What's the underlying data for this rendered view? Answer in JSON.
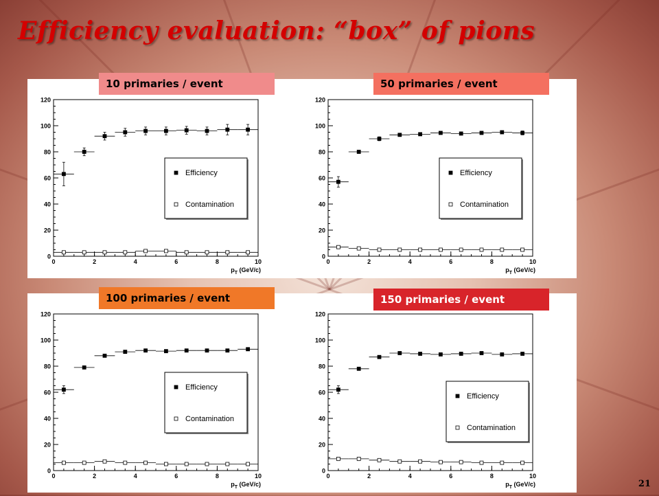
{
  "slide": {
    "title": "Efficiency evaluation: “box” of pions",
    "page_number": "21"
  },
  "colors": {
    "title": "#d40000",
    "label_10": "#f08b8b",
    "label_50": "#f47060",
    "label_100": "#f07828",
    "label_150": "#d8242a",
    "label_150_text": "#ffffff",
    "label_text": "#000000"
  },
  "panels": [
    {
      "label": "10 primaries  / event"
    },
    {
      "label": "50 primaries  / event"
    },
    {
      "label": "100 primaries / event"
    },
    {
      "label": "150 primaries / event"
    }
  ],
  "chart_data": [
    {
      "type": "scatter",
      "xlabel": "p_T (GeV/c)",
      "xlim": [
        0,
        10
      ],
      "ylim": [
        0,
        120
      ],
      "xticks": [
        0,
        2,
        4,
        6,
        8,
        10
      ],
      "yticks": [
        0,
        20,
        40,
        60,
        80,
        100,
        120
      ],
      "legend": [
        "Efficiency",
        "Contamination"
      ],
      "legend_position": "center-right",
      "x": [
        0.5,
        1.5,
        2.5,
        3.5,
        4.5,
        5.5,
        6.5,
        7.5,
        8.5,
        9.5
      ],
      "series": [
        {
          "name": "Efficiency",
          "marker": "filled-square",
          "values": [
            63,
            80,
            92,
            95,
            96,
            96,
            96.5,
            96,
            97,
            97
          ],
          "errors": [
            9,
            3,
            3,
            3,
            3,
            3,
            3,
            3,
            4,
            4
          ]
        },
        {
          "name": "Contamination",
          "marker": "open-square",
          "values": [
            3,
            3,
            3,
            3,
            4,
            4,
            3,
            3,
            3,
            3
          ]
        }
      ]
    },
    {
      "type": "scatter",
      "xlabel": "p_T (GeV/c)",
      "xlim": [
        0,
        10
      ],
      "ylim": [
        0,
        120
      ],
      "xticks": [
        0,
        2,
        4,
        6,
        8,
        10
      ],
      "yticks": [
        0,
        20,
        40,
        60,
        80,
        100,
        120
      ],
      "legend": [
        "Efficiency",
        "Contamination"
      ],
      "legend_position": "center-right",
      "x": [
        0.5,
        1.5,
        2.5,
        3.5,
        4.5,
        5.5,
        6.5,
        7.5,
        8.5,
        9.5
      ],
      "series": [
        {
          "name": "Efficiency",
          "marker": "filled-square",
          "values": [
            57,
            80,
            90,
            93,
            93.5,
            94.5,
            94,
            94.5,
            95,
            94.5
          ],
          "errors": [
            4,
            1,
            1.5,
            1,
            1,
            1,
            1,
            1,
            1,
            1.5
          ]
        },
        {
          "name": "Contamination",
          "marker": "open-square",
          "values": [
            7,
            6,
            5,
            5,
            5,
            5,
            5,
            5,
            5,
            5
          ]
        }
      ]
    },
    {
      "type": "scatter",
      "xlabel": "p_T (GeV/c)",
      "xlim": [
        0,
        10
      ],
      "ylim": [
        0,
        120
      ],
      "xticks": [
        0,
        2,
        4,
        6,
        8,
        10
      ],
      "yticks": [
        0,
        20,
        40,
        60,
        80,
        100,
        120
      ],
      "legend": [
        "Efficiency",
        "Contamination"
      ],
      "legend_position": "center-right",
      "x": [
        0.5,
        1.5,
        2.5,
        3.5,
        4.5,
        5.5,
        6.5,
        7.5,
        8.5,
        9.5
      ],
      "series": [
        {
          "name": "Efficiency",
          "marker": "filled-square",
          "values": [
            62,
            79,
            88,
            91,
            92,
            91.5,
            92,
            92,
            92,
            93
          ],
          "errors": [
            3,
            1,
            1,
            1,
            1,
            1,
            1,
            1,
            1,
            1
          ]
        },
        {
          "name": "Contamination",
          "marker": "open-square",
          "values": [
            6,
            6,
            7,
            6,
            6,
            5,
            5,
            5,
            5,
            5
          ]
        }
      ]
    },
    {
      "type": "scatter",
      "xlabel": "p_T (GeV/c)",
      "xlim": [
        0,
        10
      ],
      "ylim": [
        0,
        120
      ],
      "xticks": [
        0,
        2,
        4,
        6,
        8,
        10
      ],
      "yticks": [
        0,
        20,
        40,
        60,
        80,
        100,
        120
      ],
      "legend": [
        "Efficiency",
        "Contamination"
      ],
      "legend_position": "center-right",
      "x": [
        0.5,
        1.5,
        2.5,
        3.5,
        4.5,
        5.5,
        6.5,
        7.5,
        8.5,
        9.5
      ],
      "series": [
        {
          "name": "Efficiency",
          "marker": "filled-square",
          "values": [
            62,
            78,
            87,
            90,
            89.5,
            89,
            89.5,
            90,
            89,
            89.5
          ],
          "errors": [
            3,
            1,
            1,
            1,
            1,
            1,
            1,
            1,
            1,
            1
          ]
        },
        {
          "name": "Contamination",
          "marker": "open-square",
          "values": [
            9,
            9,
            8,
            7,
            7,
            6.5,
            6.5,
            6,
            6,
            6
          ]
        }
      ]
    }
  ]
}
